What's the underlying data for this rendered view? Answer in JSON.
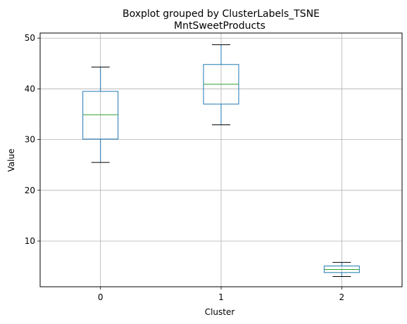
{
  "chart_data": {
    "type": "boxplot",
    "suptitle": "Boxplot grouped by ClusterLabels_TSNE",
    "title": "MntSweetProducts",
    "xlabel": "Cluster",
    "ylabel": "Value",
    "ylim": [
      1,
      51
    ],
    "yticks": [
      10,
      20,
      30,
      40,
      50
    ],
    "grid": true,
    "categories": [
      "0",
      "1",
      "2"
    ],
    "boxes": [
      {
        "category": "0",
        "whisker_low": 25.5,
        "q1": 30.1,
        "median": 34.9,
        "q3": 39.5,
        "whisker_high": 44.3
      },
      {
        "category": "1",
        "whisker_low": 32.9,
        "q1": 37.0,
        "median": 40.9,
        "q3": 44.8,
        "whisker_high": 48.7
      },
      {
        "category": "2",
        "whisker_low": 3.0,
        "q1": 3.8,
        "median": 4.4,
        "q3": 5.1,
        "whisker_high": 5.8
      }
    ],
    "colors": {
      "box": "#1f77b4",
      "median": "#2ca02c",
      "whisker_cap": "#000000",
      "grid": "#b0b0b0"
    }
  }
}
